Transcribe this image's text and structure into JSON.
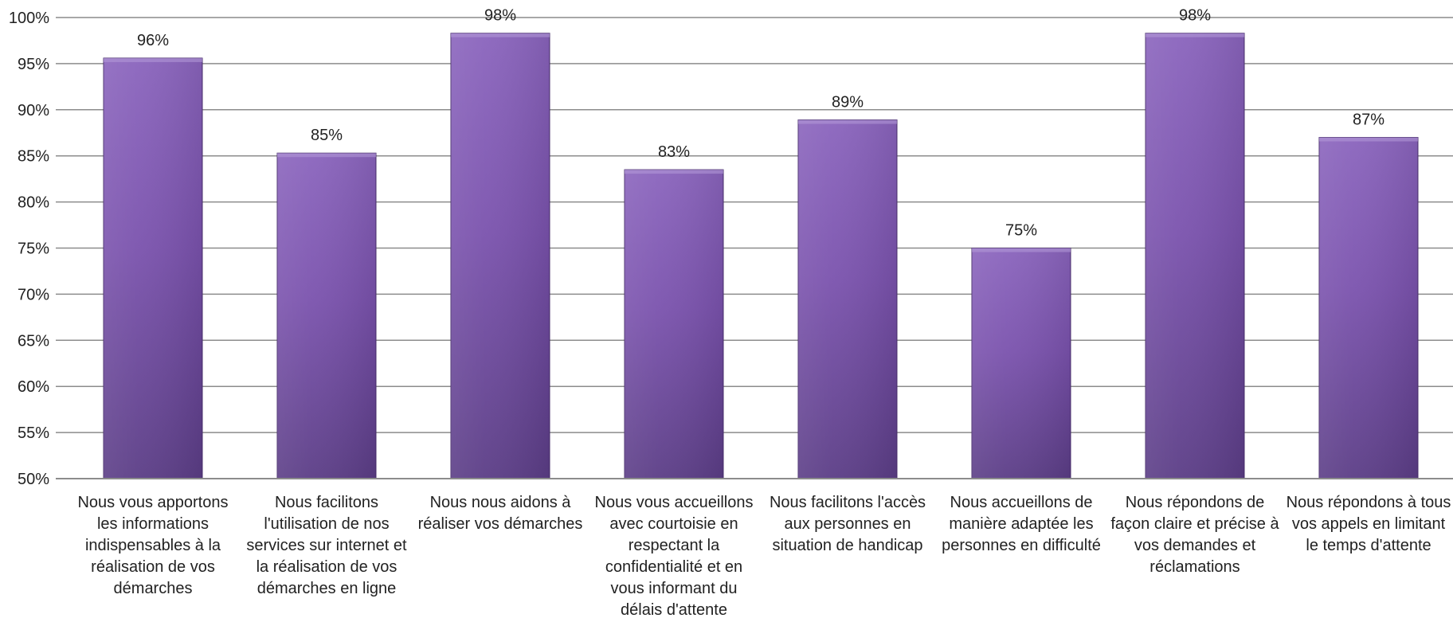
{
  "chart_data": {
    "type": "bar",
    "title": "",
    "xlabel": "",
    "ylabel": "",
    "ylim": [
      0.5,
      1.0
    ],
    "y_ticks": [
      0.5,
      0.55,
      0.6,
      0.65,
      0.7,
      0.75,
      0.8,
      0.85,
      0.9,
      0.95,
      1.0
    ],
    "y_tick_labels": [
      "50%",
      "55%",
      "60%",
      "65%",
      "70%",
      "75%",
      "80%",
      "85%",
      "90%",
      "95%",
      "100%"
    ],
    "grid": true,
    "legend": "none",
    "colors": {
      "bar_top": "#8a64bd",
      "bar_mid": "#7a52ad",
      "bar_bottom": "#5b3d86",
      "bar_edge": "#4a2f6e",
      "gridline": "#8c8c8c",
      "axis": "#8c8c8c"
    },
    "categories": [
      [
        "Nous vous apportons",
        "les informations",
        "indispensables à la",
        "réalisation de vos",
        "démarches"
      ],
      [
        "Nous facilitons",
        "l'utilisation de nos",
        "services sur internet et",
        "la réalisation de vos",
        "démarches en ligne"
      ],
      [
        "Nous nous aidons à",
        "réaliser vos démarches"
      ],
      [
        "Nous vous accueillons",
        "avec courtoisie en",
        "respectant la",
        "confidentialité et en",
        "vous informant du",
        "délais d'attente"
      ],
      [
        "Nous facilitons l'accès",
        "aux personnes en",
        "situation de handicap"
      ],
      [
        "Nous accueillons de",
        "manière adaptée les",
        "personnes en difficulté"
      ],
      [
        "Nous répondons de",
        "façon claire et précise à",
        "vos demandes et",
        "réclamations"
      ],
      [
        "Nous répondons à tous",
        "vos appels en limitant",
        "le temps d'attente"
      ]
    ],
    "values": [
      0.956,
      0.853,
      0.983,
      0.835,
      0.889,
      0.75,
      0.983,
      0.87
    ],
    "data_labels": [
      "96%",
      "85%",
      "98%",
      "83%",
      "89%",
      "75%",
      "98%",
      "87%"
    ]
  }
}
